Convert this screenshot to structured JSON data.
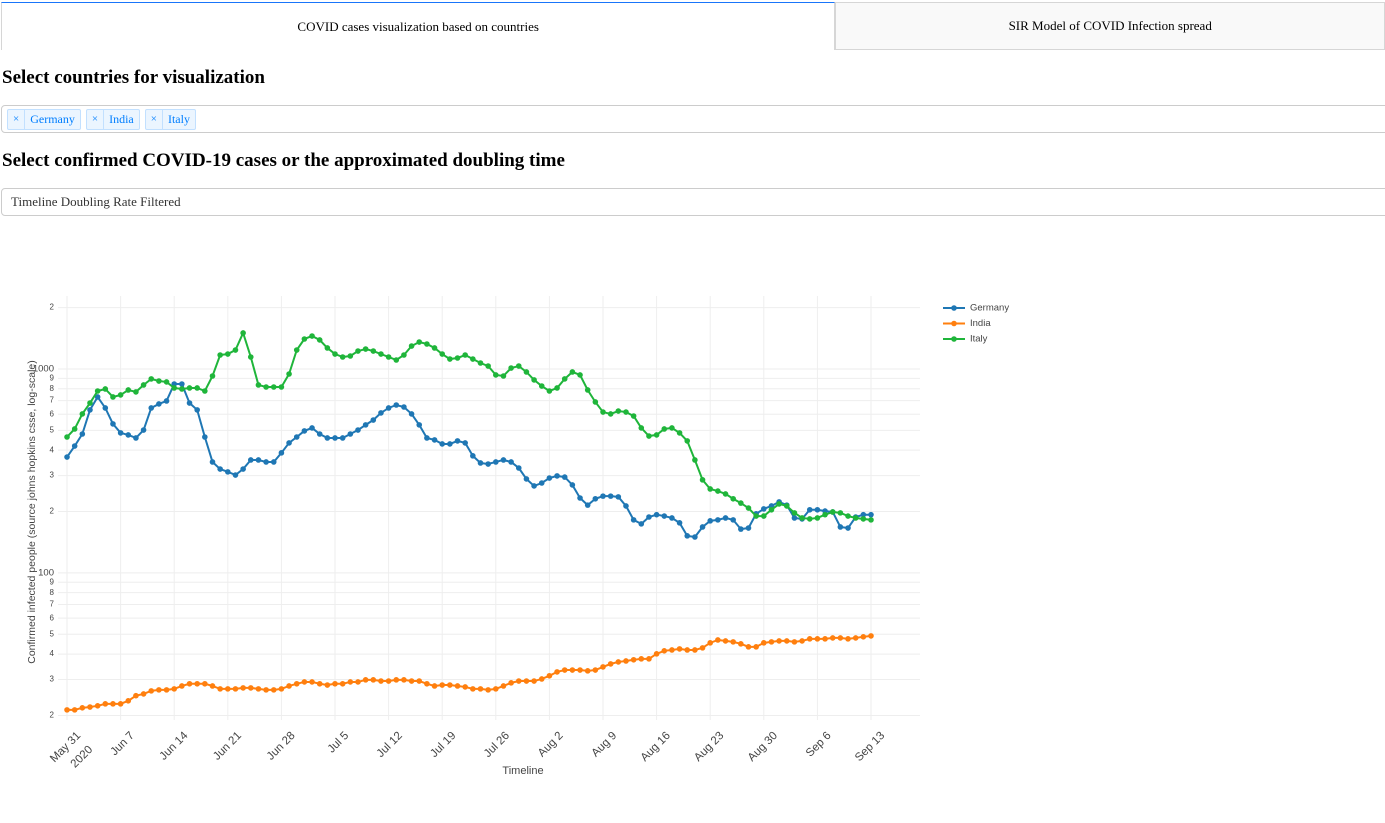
{
  "tabs": [
    {
      "label": "COVID cases visualization based on countries",
      "selected": true
    },
    {
      "label": "SIR Model of COVID Infection spread",
      "selected": false
    }
  ],
  "country_heading": "Select countries for visualization",
  "country_select": {
    "selected": [
      "Germany",
      "India",
      "Italy"
    ]
  },
  "metric_heading": "Select confirmed COVID-19 cases or the approximated doubling time",
  "metric_select": {
    "value": "Timeline Doubling Rate Filtered"
  },
  "chart_data": {
    "type": "line",
    "x_label": "Timeline",
    "y_label": "Confirmed infected people (source johns hopkins csse, log-scale)",
    "x": [
      "2020-05-31",
      "2020-06-01",
      "2020-06-02",
      "2020-06-03",
      "2020-06-04",
      "2020-06-05",
      "2020-06-06",
      "2020-06-07",
      "2020-06-08",
      "2020-06-09",
      "2020-06-10",
      "2020-06-11",
      "2020-06-12",
      "2020-06-13",
      "2020-06-14",
      "2020-06-15",
      "2020-06-16",
      "2020-06-17",
      "2020-06-18",
      "2020-06-19",
      "2020-06-20",
      "2020-06-21",
      "2020-06-22",
      "2020-06-23",
      "2020-06-24",
      "2020-06-25",
      "2020-06-26",
      "2020-06-27",
      "2020-06-28",
      "2020-06-29",
      "2020-06-30",
      "2020-07-01",
      "2020-07-02",
      "2020-07-03",
      "2020-07-04",
      "2020-07-05",
      "2020-07-06",
      "2020-07-07",
      "2020-07-08",
      "2020-07-09",
      "2020-07-10",
      "2020-07-11",
      "2020-07-12",
      "2020-07-13",
      "2020-07-14",
      "2020-07-15",
      "2020-07-16",
      "2020-07-17",
      "2020-07-18",
      "2020-07-19",
      "2020-07-20",
      "2020-07-21",
      "2020-07-22",
      "2020-07-23",
      "2020-07-24",
      "2020-07-25",
      "2020-07-26",
      "2020-07-27",
      "2020-07-28",
      "2020-07-29",
      "2020-07-30",
      "2020-07-31",
      "2020-08-01",
      "2020-08-02",
      "2020-08-03",
      "2020-08-04",
      "2020-08-05",
      "2020-08-06",
      "2020-08-07",
      "2020-08-08",
      "2020-08-09",
      "2020-08-10",
      "2020-08-11",
      "2020-08-12",
      "2020-08-13",
      "2020-08-14",
      "2020-08-15",
      "2020-08-16",
      "2020-08-17",
      "2020-08-18",
      "2020-08-19",
      "2020-08-20",
      "2020-08-21",
      "2020-08-22",
      "2020-08-23",
      "2020-08-24",
      "2020-08-25",
      "2020-08-26",
      "2020-08-27",
      "2020-08-28",
      "2020-08-29",
      "2020-08-30",
      "2020-08-31",
      "2020-09-01",
      "2020-09-02",
      "2020-09-03",
      "2020-09-04",
      "2020-09-05",
      "2020-09-06",
      "2020-09-07",
      "2020-09-08",
      "2020-09-09",
      "2020-09-10",
      "2020-09-11",
      "2020-09-12",
      "2020-09-13"
    ],
    "series": [
      {
        "name": "Germany",
        "color": "#1f77b4",
        "values": [
          370,
          419,
          480,
          630,
          729,
          644,
          538,
          486,
          475,
          459,
          502,
          644,
          674,
          697,
          844,
          844,
          681,
          630,
          464,
          350,
          323,
          313,
          302,
          323,
          358,
          358,
          350,
          350,
          388,
          434,
          464,
          497,
          514,
          480,
          459,
          459,
          459,
          480,
          502,
          532,
          562,
          609,
          644,
          666,
          651,
          602,
          532,
          459,
          449,
          429,
          429,
          444,
          434,
          375,
          346,
          342,
          350,
          358,
          350,
          327,
          289,
          267,
          276,
          292,
          299,
          295,
          270,
          233,
          215,
          231,
          238,
          238,
          236,
          213,
          182,
          174,
          188,
          193,
          190,
          186,
          176,
          152,
          150,
          168,
          180,
          182,
          186,
          182,
          164,
          166,
          195,
          206,
          213,
          223,
          215,
          186,
          184,
          204,
          204,
          201,
          199,
          168,
          166,
          188,
          193,
          193
        ]
      },
      {
        "name": "India",
        "color": "#ff7f0e",
        "values": [
          21.3,
          21.3,
          21.8,
          22.0,
          22.3,
          22.8,
          22.8,
          22.8,
          23.6,
          25.0,
          25.5,
          26.4,
          26.7,
          26.7,
          27.0,
          27.9,
          28.6,
          28.6,
          28.6,
          27.9,
          27.0,
          27.0,
          27.0,
          27.3,
          27.3,
          27.0,
          26.7,
          26.7,
          27.0,
          27.9,
          28.6,
          29.2,
          29.2,
          28.6,
          28.2,
          28.6,
          28.6,
          29.2,
          29.2,
          29.9,
          29.9,
          29.5,
          29.5,
          29.9,
          29.9,
          29.5,
          29.5,
          28.6,
          27.9,
          28.2,
          28.2,
          27.9,
          27.6,
          27.0,
          27.0,
          26.7,
          27.0,
          27.9,
          28.9,
          29.5,
          29.5,
          29.5,
          30.2,
          31.3,
          32.7,
          33.4,
          33.4,
          33.4,
          33.1,
          33.4,
          34.6,
          35.8,
          36.6,
          37.0,
          37.5,
          37.9,
          37.9,
          40.1,
          41.5,
          41.9,
          42.4,
          41.9,
          41.9,
          42.9,
          45.4,
          46.9,
          46.4,
          45.9,
          44.9,
          43.4,
          43.4,
          45.4,
          45.9,
          46.4,
          46.4,
          45.9,
          46.4,
          47.5,
          47.5,
          47.5,
          48.0,
          48.0,
          47.5,
          48.0,
          48.6,
          49.1
        ]
      },
      {
        "name": "Italy",
        "color": "#1fb53a",
        "values": [
          464,
          508,
          602,
          681,
          780,
          798,
          729,
          746,
          789,
          772,
          835,
          894,
          873,
          864,
          807,
          798,
          807,
          807,
          780,
          924,
          1171,
          1184,
          1239,
          1502,
          1145,
          835,
          816,
          816,
          816,
          945,
          1239,
          1403,
          1451,
          1388,
          1268,
          1184,
          1145,
          1158,
          1225,
          1253,
          1225,
          1184,
          1145,
          1107,
          1171,
          1296,
          1356,
          1326,
          1268,
          1184,
          1119,
          1132,
          1171,
          1119,
          1070,
          1034,
          935,
          924,
          1011,
          1034,
          967,
          884,
          825,
          780,
          807,
          894,
          967,
          935,
          789,
          689,
          615,
          602,
          622,
          615,
          588,
          514,
          469,
          475,
          508,
          514,
          486,
          444,
          358,
          286,
          258,
          252,
          244,
          231,
          220,
          208,
          190,
          190,
          204,
          218,
          213,
          197,
          186,
          184,
          186,
          193,
          199,
          197,
          190,
          186,
          184,
          182
        ]
      }
    ],
    "xlim": [
      "2020-05-29T19:45:00Z",
      "2020-09-19T09:35:00Z"
    ],
    "xticks": [
      {
        "value": "2020-05-31",
        "label": "May 31"
      },
      {
        "value": "2020-06-07",
        "label": "Jun 7"
      },
      {
        "value": "2020-06-14",
        "label": "Jun 14"
      },
      {
        "value": "2020-06-21",
        "label": "Jun 21"
      },
      {
        "value": "2020-06-28",
        "label": "Jun 28"
      },
      {
        "value": "2020-07-05",
        "label": "Jul 5"
      },
      {
        "value": "2020-07-12",
        "label": "Jul 12"
      },
      {
        "value": "2020-07-19",
        "label": "Jul 19"
      },
      {
        "value": "2020-07-26",
        "label": "Jul 26"
      },
      {
        "value": "2020-08-02",
        "label": "Aug 2"
      },
      {
        "value": "2020-08-09",
        "label": "Aug 9"
      },
      {
        "value": "2020-08-16",
        "label": "Aug 16"
      },
      {
        "value": "2020-08-23",
        "label": "Aug 23"
      },
      {
        "value": "2020-08-30",
        "label": "Aug 30"
      },
      {
        "value": "2020-09-06",
        "label": "Sep 6"
      },
      {
        "value": "2020-09-13",
        "label": "Sep 13"
      }
    ],
    "xtick_year": "2020",
    "ylim": [
      19,
      2280
    ],
    "log_y": true,
    "yticks": [
      {
        "value": 20,
        "label": "2"
      },
      {
        "value": 30,
        "label": "3"
      },
      {
        "value": 40,
        "label": "4"
      },
      {
        "value": 50,
        "label": "5"
      },
      {
        "value": 60,
        "label": "6"
      },
      {
        "value": 70,
        "label": "7"
      },
      {
        "value": 80,
        "label": "8"
      },
      {
        "value": 90,
        "label": "9"
      },
      100,
      {
        "value": 200,
        "label": "2"
      },
      {
        "value": 300,
        "label": "3"
      },
      {
        "value": 400,
        "label": "4"
      },
      {
        "value": 500,
        "label": "5"
      },
      {
        "value": 600,
        "label": "6"
      },
      {
        "value": 700,
        "label": "7"
      },
      {
        "value": 800,
        "label": "8"
      },
      {
        "value": 900,
        "label": "9"
      },
      1000,
      {
        "value": 2000,
        "label": "2"
      }
    ],
    "grid": true,
    "markers": true,
    "legend": "right"
  }
}
